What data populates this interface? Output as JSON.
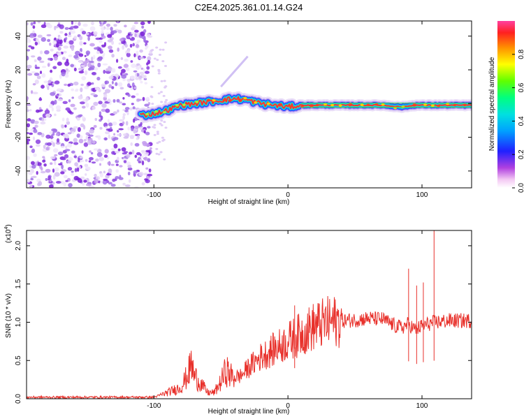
{
  "title": "C2E4.2025.361.01.14.G24",
  "chart_data": [
    {
      "type": "heatmap",
      "name": "spectrogram",
      "xlabel": "Height of straight line (km)",
      "ylabel": "Frequency (Hz)",
      "xlim": [
        -195,
        137
      ],
      "ylim": [
        -50,
        49
      ],
      "xticks": [
        -100,
        0,
        100
      ],
      "xtick_labels": [
        "-100",
        "0",
        "100"
      ],
      "yticks": [
        -40,
        -20,
        0,
        20,
        40
      ],
      "ytick_labels": [
        "-40",
        "-20",
        "0",
        "20",
        "40"
      ],
      "ridge": {
        "x": [
          -110,
          -100,
          -90,
          -80,
          -70,
          -60,
          -50,
          -40,
          -30,
          -20,
          -10,
          0,
          10,
          30,
          50,
          70,
          85,
          95,
          105,
          137
        ],
        "y": [
          -7,
          -6,
          -4,
          -1,
          0,
          1,
          2,
          3,
          2,
          0,
          -1,
          -2,
          -1,
          -1,
          -1,
          -1,
          -2,
          -1,
          -1,
          -1
        ]
      },
      "noise_region": [
        -195,
        -100
      ],
      "colorbar": {
        "label": "Normalized spectral amplitude",
        "range": [
          0,
          1
        ],
        "ticks": [
          0.0,
          0.2,
          0.4,
          0.6,
          0.8
        ],
        "tick_labels": [
          "0.0",
          "0.2",
          "0.4",
          "0.6",
          "0.8"
        ]
      }
    },
    {
      "type": "line",
      "name": "snr",
      "xlabel": "Height of straight line (km)",
      "ylabel": "SNR (10 * v/v)",
      "multiplier": "(x10",
      "multiplier_exp": "4",
      "multiplier_close": ")",
      "xlim": [
        -195,
        137
      ],
      "ylim": [
        0,
        2.2
      ],
      "xticks": [
        -100,
        0,
        100
      ],
      "xtick_labels": [
        "-100",
        "0",
        "100"
      ],
      "yticks": [
        0.0,
        0.5,
        1.0,
        1.5,
        2.0
      ],
      "ytick_labels": [
        "0.0",
        "0.5",
        "1.0",
        "1.5",
        "2.0"
      ],
      "color": "#e8302a",
      "series": [
        {
          "name": "SNR",
          "x": [
            -195,
            -150,
            -100,
            -90,
            -80,
            -75,
            -72,
            -70,
            -65,
            -60,
            -55,
            -50,
            -46,
            -43,
            -40,
            -35,
            -30,
            -20,
            -10,
            0,
            10,
            20,
            30,
            40,
            50,
            60,
            70,
            75,
            80,
            85,
            90,
            95,
            100,
            105,
            110,
            120,
            137
          ],
          "y": [
            0.02,
            0.02,
            0.02,
            0.08,
            0.15,
            0.3,
            0.45,
            0.3,
            0.2,
            0.08,
            0.08,
            0.22,
            0.38,
            0.3,
            0.28,
            0.3,
            0.4,
            0.55,
            0.65,
            0.75,
            0.85,
            0.95,
            1.0,
            1.02,
            1.03,
            1.05,
            1.04,
            1.0,
            0.95,
            0.93,
            0.98,
            0.9,
            0.95,
            0.98,
            1.0,
            1.02,
            1.02
          ]
        }
      ],
      "spikes": [
        {
          "x": 5,
          "y": 1.22
        },
        {
          "x": 90,
          "y": 1.7
        },
        {
          "x": 96,
          "y": 1.48
        },
        {
          "x": 101,
          "y": 1.52
        },
        {
          "x": 109,
          "y": 2.2
        }
      ]
    }
  ]
}
